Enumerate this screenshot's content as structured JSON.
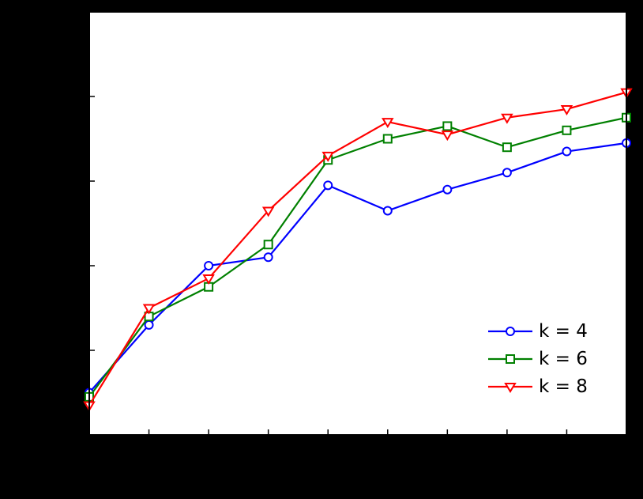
{
  "figure": {
    "background_color": "#000000",
    "plot_background_color": "#ffffff",
    "axis_color": "#000000"
  },
  "legend": {
    "entries": [
      "k = 4",
      "k = 6",
      "k = 8"
    ]
  },
  "chart_data": {
    "type": "line",
    "x": [
      1,
      2,
      3,
      4,
      5,
      6,
      7,
      8,
      9,
      10
    ],
    "series": [
      {
        "name": "k = 4",
        "color": "#0000ff",
        "marker": "circle",
        "values": [
          0.1,
          0.26,
          0.4,
          0.42,
          0.59,
          0.53,
          0.58,
          0.62,
          0.67,
          0.69
        ]
      },
      {
        "name": "k = 6",
        "color": "#008000",
        "marker": "square",
        "values": [
          0.09,
          0.28,
          0.35,
          0.45,
          0.65,
          0.7,
          0.73,
          0.68,
          0.72,
          0.75
        ]
      },
      {
        "name": "k = 8",
        "color": "#ff0000",
        "marker": "triangle-down",
        "values": [
          0.07,
          0.3,
          0.37,
          0.53,
          0.66,
          0.74,
          0.71,
          0.75,
          0.77,
          0.81
        ]
      }
    ],
    "title": "",
    "xlabel": "",
    "ylabel": "",
    "xlim": [
      1,
      10
    ],
    "ylim": [
      0,
      1
    ],
    "x_ticks": [
      1,
      2,
      3,
      4,
      5,
      6,
      7,
      8,
      9,
      10
    ],
    "y_ticks": [
      0,
      0.2,
      0.4,
      0.6,
      0.8,
      1.0
    ],
    "grid": false,
    "legend_position": "lower right",
    "legend_border": false
  }
}
